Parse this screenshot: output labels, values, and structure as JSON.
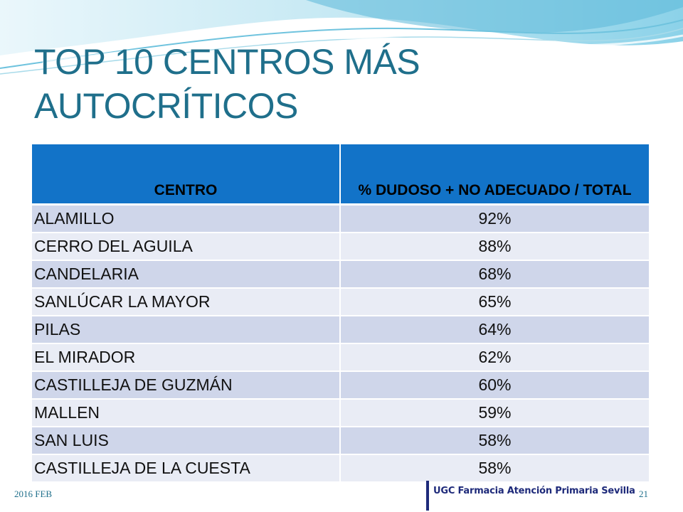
{
  "slide": {
    "title": "TOP 10 CENTROS MÁS AUTOCRÍTICOS",
    "colors": {
      "title": "#1f6f8b",
      "header_bg": "#1273c8",
      "row_odd": "#cfd6ea",
      "row_even": "#e9ecf5"
    }
  },
  "table": {
    "headers": [
      "CENTRO",
      "% DUDOSO + NO ADECUADO / TOTAL"
    ],
    "rows": [
      [
        "ALAMILLO",
        "92%"
      ],
      [
        "CERRO DEL AGUILA",
        "88%"
      ],
      [
        "CANDELARIA",
        "68%"
      ],
      [
        "SANLÚCAR LA MAYOR",
        "65%"
      ],
      [
        "PILAS",
        "64%"
      ],
      [
        "EL MIRADOR",
        "62%"
      ],
      [
        "CASTILLEJA DE GUZMÁN",
        "60%"
      ],
      [
        "MALLEN",
        "59%"
      ],
      [
        "SAN LUIS",
        "58%"
      ],
      [
        "CASTILLEJA DE LA CUESTA",
        "58%"
      ]
    ]
  },
  "footer": {
    "date": "2016 FEB",
    "logo_text": "UGC Farmacia Atención Primaria Sevilla",
    "page_number": "21"
  }
}
